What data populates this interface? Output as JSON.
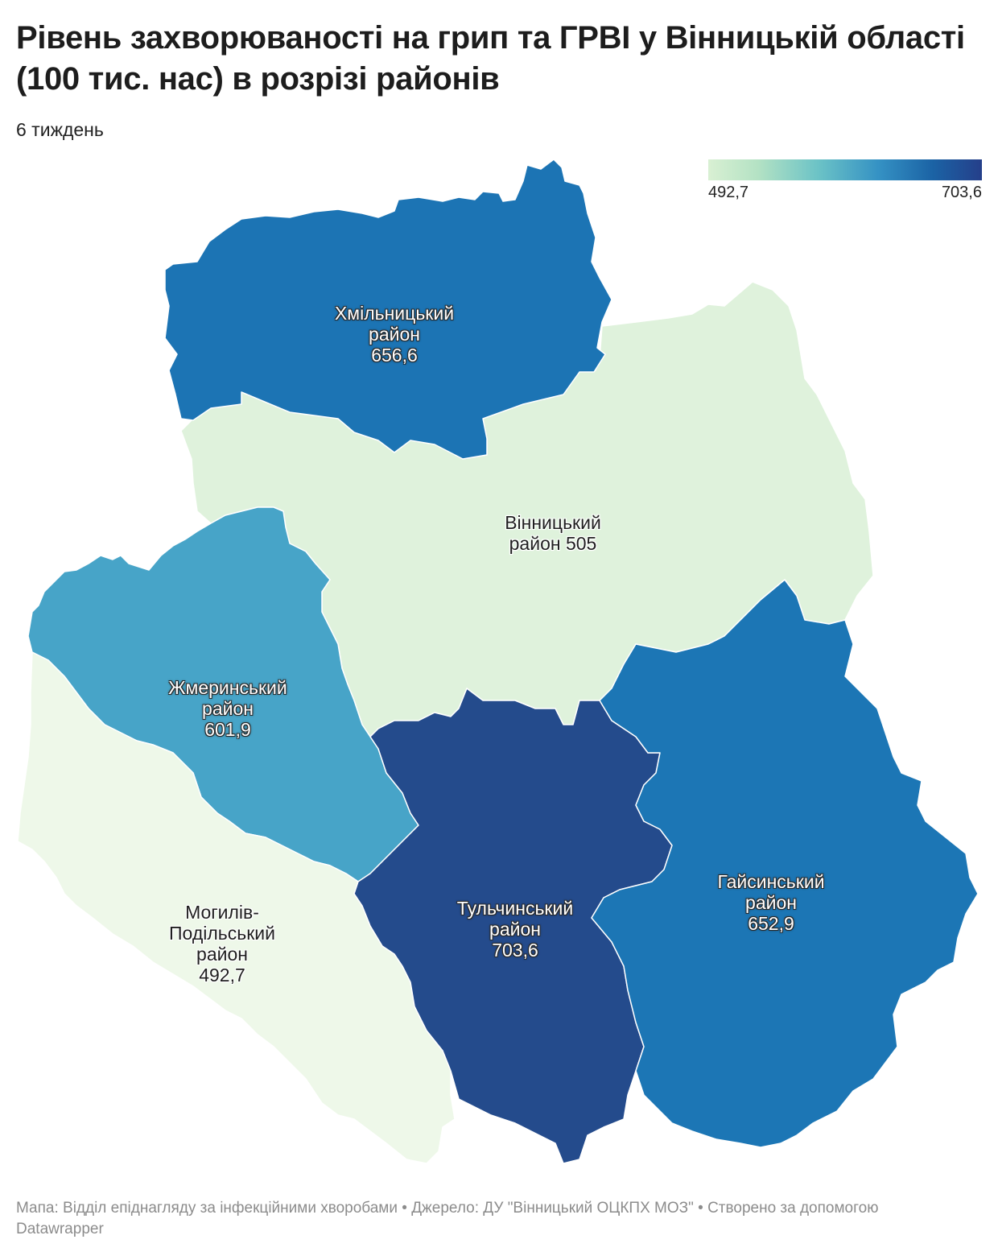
{
  "title": "Рівень захворюваності на грип та ГРВІ у Вінницькій області (100 тис. нас) в розрізі районів",
  "subtitle": "6 тиждень",
  "legend": {
    "min": "492,7",
    "max": "703,6",
    "colors": [
      "#d9f0d3",
      "#b4e2c4",
      "#6cc3c6",
      "#3592c4",
      "#1b63a5",
      "#253f8a"
    ]
  },
  "regions": [
    {
      "id": "khmilnytskyi",
      "name_line1": "Хмільницький",
      "name_line2": "район",
      "value": "656,6",
      "color": "#1c74b4"
    },
    {
      "id": "vinnytskyi",
      "name_line1": "Вінницький",
      "name_line2": "район 505",
      "value": "",
      "color": "#dff2dc"
    },
    {
      "id": "zhmerynskyi",
      "name_line1": "Жмеринський",
      "name_line2": "район",
      "value": "601,9",
      "color": "#47a4c8"
    },
    {
      "id": "mohyliv",
      "name_line1": "Могилів-",
      "name_line2": "Подільський",
      "name_line3": "район",
      "value": "492,7",
      "color": "#eef8e9"
    },
    {
      "id": "tulchynskyi",
      "name_line1": "Тульчинський",
      "name_line2": "район",
      "value": "703,6",
      "color": "#244b8c"
    },
    {
      "id": "haisynskyi",
      "name_line1": "Гайсинський",
      "name_line2": "район",
      "value": "652,9",
      "color": "#1c76b5"
    }
  ],
  "footer": {
    "text": "Мапа: Відділ епіднагляду за інфекційними хворобами  • Джерело: ДУ \"Вінницький ОЦКПХ МОЗ\" • Створено за допомогою Datawrapper"
  }
}
